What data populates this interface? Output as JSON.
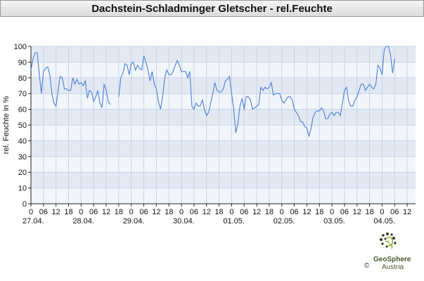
{
  "title": "Dachstein-Schladminger Gletscher - rel.Feuchte",
  "logo": {
    "name": "GeoSphere",
    "sub": "Austria",
    "copyright": "©"
  },
  "chart_data": {
    "type": "line",
    "title": "Dachstein-Schladminger Gletscher - rel.Feuchte",
    "xlabel": "",
    "ylabel": "rel. Feuchte in %",
    "ylim": [
      0,
      100
    ],
    "yticks": [
      0,
      10,
      20,
      30,
      40,
      50,
      60,
      70,
      80,
      90,
      100
    ],
    "xlim": [
      0,
      184
    ],
    "xunit": "hours since 27.04. 00:00",
    "hour_ticks": [
      {
        "x": 0,
        "label": "0"
      },
      {
        "x": 6,
        "label": "06"
      },
      {
        "x": 12,
        "label": "12"
      },
      {
        "x": 18,
        "label": "18"
      },
      {
        "x": 24,
        "label": "0"
      },
      {
        "x": 30,
        "label": "06"
      },
      {
        "x": 36,
        "label": "12"
      },
      {
        "x": 42,
        "label": "18"
      },
      {
        "x": 48,
        "label": "0"
      },
      {
        "x": 54,
        "label": "06"
      },
      {
        "x": 60,
        "label": "12"
      },
      {
        "x": 66,
        "label": "18"
      },
      {
        "x": 72,
        "label": "0"
      },
      {
        "x": 78,
        "label": "06"
      },
      {
        "x": 84,
        "label": "12"
      },
      {
        "x": 90,
        "label": "18"
      },
      {
        "x": 96,
        "label": "0"
      },
      {
        "x": 102,
        "label": "06"
      },
      {
        "x": 108,
        "label": "12"
      },
      {
        "x": 114,
        "label": "18"
      },
      {
        "x": 120,
        "label": "0"
      },
      {
        "x": 126,
        "label": "06"
      },
      {
        "x": 132,
        "label": "12"
      },
      {
        "x": 138,
        "label": "18"
      },
      {
        "x": 144,
        "label": "0"
      },
      {
        "x": 150,
        "label": "06"
      },
      {
        "x": 156,
        "label": "12"
      },
      {
        "x": 162,
        "label": "18"
      },
      {
        "x": 168,
        "label": "0"
      },
      {
        "x": 174,
        "label": "06"
      },
      {
        "x": 180,
        "label": "12"
      }
    ],
    "date_ticks": [
      {
        "x": 0,
        "label": "27.04."
      },
      {
        "x": 24,
        "label": "28.04."
      },
      {
        "x": 48,
        "label": "29.04."
      },
      {
        "x": 72,
        "label": "30.04."
      },
      {
        "x": 96,
        "label": "01.05."
      },
      {
        "x": 120,
        "label": "02.05."
      },
      {
        "x": 144,
        "label": "03.05."
      },
      {
        "x": 168,
        "label": "04.05."
      }
    ],
    "grid": true,
    "series_color": "#4a7fd8",
    "series": [
      {
        "segments": [
          [
            [
              0,
              85
            ],
            [
              1,
              92
            ],
            [
              2,
              96
            ],
            [
              3,
              96
            ],
            [
              4,
              82
            ],
            [
              5,
              70
            ],
            [
              6,
              84
            ],
            [
              7,
              86
            ],
            [
              8,
              87
            ],
            [
              9,
              82
            ],
            [
              10,
              70
            ],
            [
              11,
              64
            ],
            [
              12,
              62
            ],
            [
              13,
              72
            ],
            [
              14,
              81
            ],
            [
              15,
              80
            ],
            [
              16,
              73
            ],
            [
              17,
              73
            ],
            [
              18,
              72
            ],
            [
              19,
              72
            ],
            [
              20,
              80
            ],
            [
              21,
              76
            ],
            [
              22,
              79
            ],
            [
              23,
              76
            ],
            [
              24,
              77
            ],
            [
              25,
              75
            ],
            [
              26,
              78
            ],
            [
              27,
              67
            ],
            [
              28,
              72
            ],
            [
              29,
              71
            ],
            [
              30,
              65
            ],
            [
              31,
              68
            ],
            [
              32,
              72
            ],
            [
              33,
              64
            ],
            [
              34,
              61
            ],
            [
              35,
              76
            ],
            [
              36,
              72
            ],
            [
              37,
              65
            ],
            [
              38,
              63
            ]
          ],
          [
            [
              42,
              68
            ],
            [
              43,
              80
            ],
            [
              44,
              83
            ],
            [
              45,
              89
            ],
            [
              46,
              88
            ],
            [
              47,
              82
            ],
            [
              48,
              89
            ],
            [
              49,
              90
            ],
            [
              50,
              85
            ],
            [
              51,
              88
            ],
            [
              52,
              86
            ],
            [
              53,
              85
            ],
            [
              54,
              94
            ],
            [
              55,
              90
            ],
            [
              56,
              85
            ],
            [
              57,
              78
            ],
            [
              58,
              84
            ],
            [
              59,
              76
            ],
            [
              60,
              73
            ],
            [
              61,
              65
            ],
            [
              62,
              60
            ],
            [
              63,
              68
            ],
            [
              64,
              80
            ],
            [
              65,
              85
            ],
            [
              66,
              82
            ],
            [
              67,
              82
            ],
            [
              68,
              84
            ],
            [
              69,
              88
            ],
            [
              70,
              91
            ],
            [
              71,
              88
            ],
            [
              72,
              84
            ],
            [
              73,
              84
            ],
            [
              74,
              84
            ],
            [
              75,
              80
            ],
            [
              76,
              84
            ],
            [
              77,
              62
            ],
            [
              78,
              60
            ],
            [
              79,
              64
            ],
            [
              80,
              62
            ],
            [
              81,
              62
            ],
            [
              82,
              66
            ],
            [
              83,
              60
            ],
            [
              84,
              56
            ],
            [
              85,
              58
            ],
            [
              86,
              64
            ],
            [
              87,
              70
            ],
            [
              88,
              77
            ],
            [
              89,
              72
            ],
            [
              90,
              71
            ],
            [
              91,
              71
            ],
            [
              92,
              73
            ],
            [
              93,
              78
            ],
            [
              94,
              79
            ],
            [
              95,
              81
            ],
            [
              96,
              70
            ],
            [
              97,
              60
            ],
            [
              98,
              45
            ],
            [
              99,
              51
            ],
            [
              100,
              62
            ],
            [
              101,
              67
            ],
            [
              102,
              60
            ],
            [
              103,
              68
            ],
            [
              104,
              68
            ],
            [
              105,
              66
            ],
            [
              106,
              60
            ],
            [
              107,
              61
            ],
            [
              108,
              62
            ],
            [
              109,
              63
            ],
            [
              110,
              74
            ],
            [
              111,
              72
            ],
            [
              112,
              74
            ],
            [
              113,
              73
            ],
            [
              114,
              74
            ],
            [
              115,
              77
            ],
            [
              116,
              69
            ],
            [
              117,
              70
            ],
            [
              118,
              70
            ],
            [
              119,
              70
            ],
            [
              120,
              66
            ],
            [
              121,
              64
            ],
            [
              122,
              66
            ],
            [
              123,
              68
            ],
            [
              124,
              68
            ],
            [
              125,
              66
            ],
            [
              126,
              60
            ],
            [
              127,
              58
            ],
            [
              128,
              56
            ],
            [
              129,
              52
            ],
            [
              130,
              52
            ],
            [
              131,
              49
            ],
            [
              132,
              48
            ],
            [
              133,
              43
            ],
            [
              134,
              48
            ],
            [
              135,
              55
            ],
            [
              136,
              58
            ],
            [
              137,
              59
            ],
            [
              138,
              59
            ],
            [
              139,
              61
            ],
            [
              140,
              59
            ],
            [
              141,
              54
            ],
            [
              142,
              54
            ],
            [
              143,
              57
            ],
            [
              144,
              58
            ],
            [
              145,
              56
            ],
            [
              146,
              58
            ],
            [
              147,
              58
            ],
            [
              148,
              56
            ],
            [
              149,
              64
            ],
            [
              150,
              72
            ],
            [
              151,
              74
            ],
            [
              152,
              65
            ],
            [
              153,
              62
            ],
            [
              154,
              62
            ],
            [
              155,
              66
            ],
            [
              156,
              68
            ],
            [
              157,
              72
            ],
            [
              158,
              76
            ],
            [
              159,
              76
            ],
            [
              160,
              72
            ],
            [
              161,
              74
            ],
            [
              162,
              76
            ],
            [
              163,
              74
            ],
            [
              164,
              73
            ],
            [
              165,
              76
            ],
            [
              166,
              88
            ],
            [
              167,
              86
            ],
            [
              168,
              82
            ],
            [
              169,
              98
            ],
            [
              170,
              100
            ],
            [
              171,
              100
            ],
            [
              172,
              95
            ],
            [
              173,
              83
            ],
            [
              174,
              92
            ]
          ]
        ]
      }
    ]
  }
}
